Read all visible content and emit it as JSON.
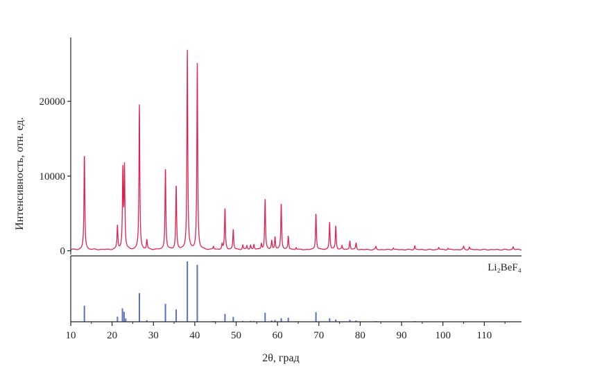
{
  "chart_data": {
    "type": "line",
    "xlabel": "2θ, град",
    "ylabel": "Интенсивность, отн. ед.",
    "xlim": [
      10,
      119
    ],
    "ylim": [
      -500,
      28000
    ],
    "x_ticks": [
      "10",
      "20",
      "30",
      "40",
      "50",
      "60",
      "70",
      "80",
      "90",
      "100",
      "110"
    ],
    "x_tick_values": [
      10,
      20,
      30,
      40,
      50,
      60,
      70,
      80,
      90,
      100,
      110
    ],
    "y_ticks": [
      "0",
      "10000",
      "20000"
    ],
    "y_tick_values": [
      0,
      10000,
      20000
    ],
    "series": [
      {
        "color": "#e0204f",
        "baseline": 150,
        "peaks": [
          [
            13.3,
            12800
          ],
          [
            21.3,
            3200
          ],
          [
            22.6,
            10400
          ],
          [
            23.0,
            10800
          ],
          [
            26.6,
            19400
          ],
          [
            28.4,
            1300
          ],
          [
            32.9,
            11000
          ],
          [
            35.5,
            8600
          ],
          [
            38.2,
            26700
          ],
          [
            40.6,
            24900
          ],
          [
            44.5,
            400
          ],
          [
            46.6,
            700
          ],
          [
            47.3,
            5500
          ],
          [
            49.3,
            2700
          ],
          [
            51.6,
            600
          ],
          [
            52.6,
            500
          ],
          [
            53.5,
            600
          ],
          [
            54.3,
            700
          ],
          [
            56.1,
            800
          ],
          [
            57.0,
            6700
          ],
          [
            58.6,
            1200
          ],
          [
            59.4,
            1700
          ],
          [
            60.9,
            6200
          ],
          [
            62.6,
            1800
          ],
          [
            64.5,
            300
          ],
          [
            69.3,
            4900
          ],
          [
            72.6,
            3700
          ],
          [
            74.1,
            3200
          ],
          [
            75.6,
            500
          ],
          [
            77.5,
            1200
          ],
          [
            79.0,
            900
          ],
          [
            83.8,
            400
          ],
          [
            88.0,
            250
          ],
          [
            93.2,
            500
          ],
          [
            99.0,
            300
          ],
          [
            101.2,
            200
          ],
          [
            105.0,
            400
          ],
          [
            106.4,
            350
          ],
          [
            117.0,
            400
          ]
        ]
      }
    ],
    "reference": {
      "label": "Li₂BeF₄",
      "color": "#5b6fc0",
      "max": 27000,
      "lines": [
        [
          13.3,
          7200
        ],
        [
          21.3,
          2300
        ],
        [
          22.5,
          6000
        ],
        [
          22.9,
          4500
        ],
        [
          23.3,
          1500
        ],
        [
          26.6,
          12800
        ],
        [
          28.4,
          700
        ],
        [
          32.9,
          8000
        ],
        [
          35.5,
          5500
        ],
        [
          38.2,
          27000
        ],
        [
          40.6,
          25500
        ],
        [
          44.5,
          300
        ],
        [
          47.3,
          3500
        ],
        [
          49.3,
          2200
        ],
        [
          51.6,
          400
        ],
        [
          53.5,
          400
        ],
        [
          54.3,
          300
        ],
        [
          57.0,
          4000
        ],
        [
          58.6,
          600
        ],
        [
          59.4,
          800
        ],
        [
          60.9,
          1600
        ],
        [
          62.6,
          1800
        ],
        [
          64.5,
          200
        ],
        [
          69.3,
          4300
        ],
        [
          72.6,
          1600
        ],
        [
          74.1,
          1000
        ],
        [
          77.5,
          900
        ],
        [
          79.0,
          600
        ],
        [
          83.8,
          300
        ],
        [
          93.2,
          300
        ]
      ]
    }
  }
}
